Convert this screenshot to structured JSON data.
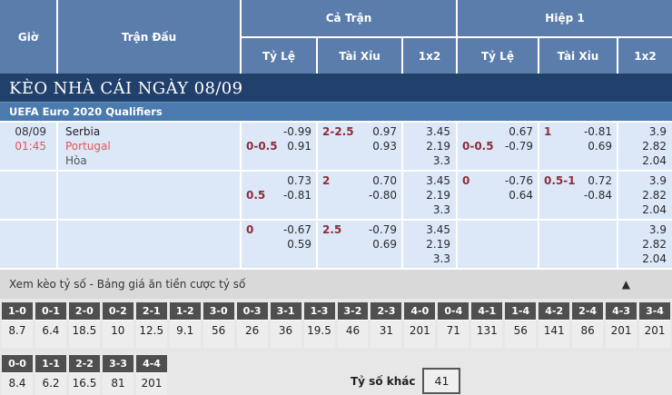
{
  "header": {
    "time": "Giờ",
    "match": "Trận Đấu",
    "full_match": "Cả Trận",
    "first_half": "Hiệp 1",
    "odds_label": "Tỷ Lệ",
    "over_under_label": "Tài Xỉu",
    "one_x_two_label": "1x2"
  },
  "section": {
    "title": "KÈO NHÀ CÁI NGÀY 08/09",
    "league": "UEFA Euro 2020 Qualifiers"
  },
  "match_info": {
    "date": "08/09",
    "time": "01:45",
    "home": "Serbia",
    "away": "Portugal",
    "draw": "Hòa"
  },
  "odds_rows": [
    {
      "ct_hc": {
        "l1_hc": "",
        "l1_od": "-0.99",
        "l2_hc": "0-0.5",
        "l2_od": "0.91"
      },
      "ct_ou": {
        "l1_hc": "2-2.5",
        "l1_od": "0.97",
        "l2_hc": "",
        "l2_od": "0.93"
      },
      "ct_1x2": [
        "3.45",
        "2.19",
        "3.3"
      ],
      "h1_hc": {
        "l1_hc": "",
        "l1_od": "0.67",
        "l2_hc": "0-0.5",
        "l2_od": "-0.79"
      },
      "h1_ou": {
        "l1_hc": "1",
        "l1_od": "-0.81",
        "l2_hc": "",
        "l2_od": "0.69"
      },
      "h1_1x2": [
        "3.9",
        "2.82",
        "2.04"
      ]
    },
    {
      "ct_hc": {
        "l1_hc": "",
        "l1_od": "0.73",
        "l2_hc": "0.5",
        "l2_od": "-0.81"
      },
      "ct_ou": {
        "l1_hc": "2",
        "l1_od": "0.70",
        "l2_hc": "",
        "l2_od": "-0.80"
      },
      "ct_1x2": [
        "3.45",
        "2.19",
        "3.3"
      ],
      "h1_hc": {
        "l1_hc": "0",
        "l1_od": "-0.76",
        "l2_hc": "",
        "l2_od": "0.64"
      },
      "h1_ou": {
        "l1_hc": "0.5-1",
        "l1_od": "0.72",
        "l2_hc": "",
        "l2_od": "-0.84"
      },
      "h1_1x2": [
        "3.9",
        "2.82",
        "2.04"
      ]
    },
    {
      "ct_hc": {
        "l1_hc": "0",
        "l1_od": "-0.67",
        "l2_hc": "",
        "l2_od": "0.59"
      },
      "ct_ou": {
        "l1_hc": "2.5",
        "l1_od": "-0.79",
        "l2_hc": "",
        "l2_od": "0.69"
      },
      "ct_1x2": [
        "3.45",
        "2.19",
        "3.3"
      ],
      "h1_hc": {
        "l1_hc": "",
        "l1_od": "",
        "l2_hc": "",
        "l2_od": ""
      },
      "h1_ou": {
        "l1_hc": "",
        "l1_od": "",
        "l2_hc": "",
        "l2_od": ""
      },
      "h1_1x2": [
        "3.9",
        "2.82",
        "2.04"
      ]
    }
  ],
  "score_section": {
    "title": "Xem kèo tỷ số - Bảng giá ăn tiền cược tỷ số",
    "collapse_icon": "▲",
    "row1": [
      {
        "score": "1-0",
        "odds": "8.7"
      },
      {
        "score": "0-1",
        "odds": "6.4"
      },
      {
        "score": "2-0",
        "odds": "18.5"
      },
      {
        "score": "0-2",
        "odds": "10"
      },
      {
        "score": "2-1",
        "odds": "12.5"
      },
      {
        "score": "1-2",
        "odds": "9.1"
      },
      {
        "score": "3-0",
        "odds": "56"
      },
      {
        "score": "0-3",
        "odds": "26"
      },
      {
        "score": "3-1",
        "odds": "36"
      },
      {
        "score": "1-3",
        "odds": "19.5"
      },
      {
        "score": "3-2",
        "odds": "46"
      },
      {
        "score": "2-3",
        "odds": "31"
      },
      {
        "score": "4-0",
        "odds": "201"
      },
      {
        "score": "0-4",
        "odds": "71"
      },
      {
        "score": "4-1",
        "odds": "131"
      },
      {
        "score": "1-4",
        "odds": "56"
      },
      {
        "score": "4-2",
        "odds": "141"
      },
      {
        "score": "2-4",
        "odds": "86"
      },
      {
        "score": "4-3",
        "odds": "201"
      },
      {
        "score": "3-4",
        "odds": "201"
      }
    ],
    "row2": [
      {
        "score": "0-0",
        "odds": "8.4"
      },
      {
        "score": "1-1",
        "odds": "6.2"
      },
      {
        "score": "2-2",
        "odds": "16.5"
      },
      {
        "score": "3-3",
        "odds": "81"
      },
      {
        "score": "4-4",
        "odds": "201"
      }
    ],
    "other_label": "Tỷ số khác",
    "other_value": "41"
  },
  "colors": {
    "header_bg": "#5b7dab",
    "section_title_bg": "#21406b",
    "league_bg": "#4a7aae",
    "row_bg": "#dce8f8",
    "handicap_text": "#8e2c38",
    "accent_red": "#e25555",
    "score_header_bg": "#4f4f4f"
  }
}
